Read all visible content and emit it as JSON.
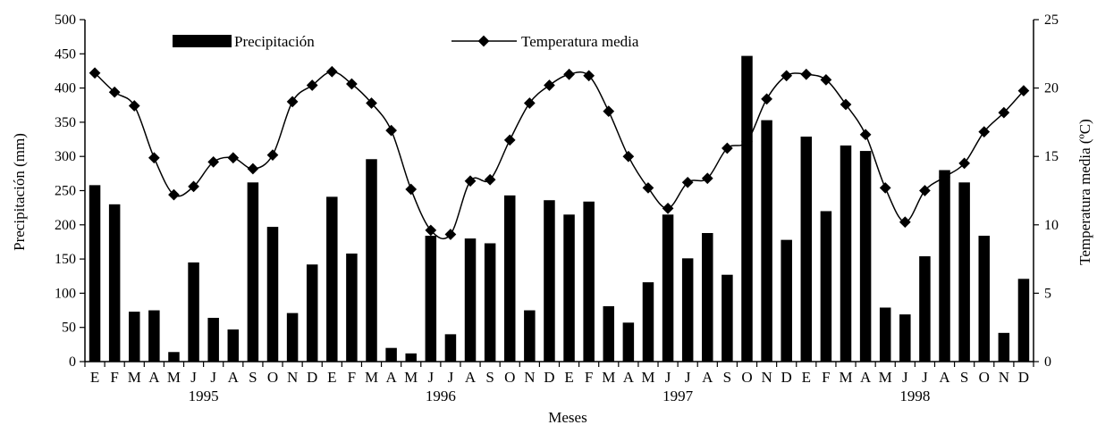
{
  "chart_data": {
    "type": "bar+line",
    "xlabel": "Meses",
    "ylabel": "Precipitación (mm)",
    "y2label": "Temperatura media (ºC)",
    "ylim": [
      0,
      500
    ],
    "y2lim": [
      0,
      25
    ],
    "yticks": [
      0,
      50,
      100,
      150,
      200,
      250,
      300,
      350,
      400,
      450,
      500
    ],
    "y2ticks": [
      0,
      5,
      10,
      15,
      20,
      25
    ],
    "grid": false,
    "legend_position": "top",
    "years": [
      "1995",
      "1996",
      "1997",
      "1998"
    ],
    "categories": [
      "E",
      "F",
      "M",
      "A",
      "M",
      "J",
      "J",
      "A",
      "S",
      "O",
      "N",
      "D",
      "E",
      "F",
      "M",
      "A",
      "M",
      "J",
      "J",
      "A",
      "S",
      "O",
      "N",
      "D",
      "E",
      "F",
      "M",
      "A",
      "M",
      "J",
      "J",
      "A",
      "S",
      "O",
      "N",
      "D",
      "E",
      "F",
      "M",
      "A",
      "M",
      "J",
      "J",
      "A",
      "S",
      "O",
      "N",
      "D"
    ],
    "series": [
      {
        "name": "Precipitación",
        "type": "bar",
        "axis": "left",
        "color": "#000000",
        "values": [
          258,
          230,
          73,
          75,
          14,
          145,
          64,
          47,
          262,
          197,
          71,
          142,
          241,
          158,
          296,
          20,
          12,
          184,
          40,
          180,
          173,
          243,
          75,
          236,
          215,
          234,
          81,
          57,
          116,
          215,
          151,
          188,
          127,
          447,
          353,
          178,
          329,
          220,
          316,
          308,
          79,
          69,
          154,
          280,
          262,
          184,
          42,
          121
        ]
      },
      {
        "name": "Temperatura media",
        "type": "line",
        "axis": "right",
        "color": "#000000",
        "values": [
          21.1,
          19.7,
          18.7,
          14.9,
          12.2,
          12.8,
          14.6,
          14.9,
          14.1,
          15.1,
          19.0,
          20.2,
          21.2,
          20.3,
          18.9,
          16.9,
          12.6,
          9.6,
          9.3,
          13.2,
          13.3,
          16.2,
          18.9,
          20.2,
          21.0,
          20.9,
          18.3,
          15.0,
          12.7,
          11.2,
          13.1,
          13.4,
          15.6,
          16.1,
          19.2,
          20.9,
          21.0,
          20.6,
          18.8,
          16.6,
          12.7,
          10.2,
          12.5,
          13.5,
          14.5,
          16.8,
          18.2,
          19.8
        ]
      }
    ]
  }
}
